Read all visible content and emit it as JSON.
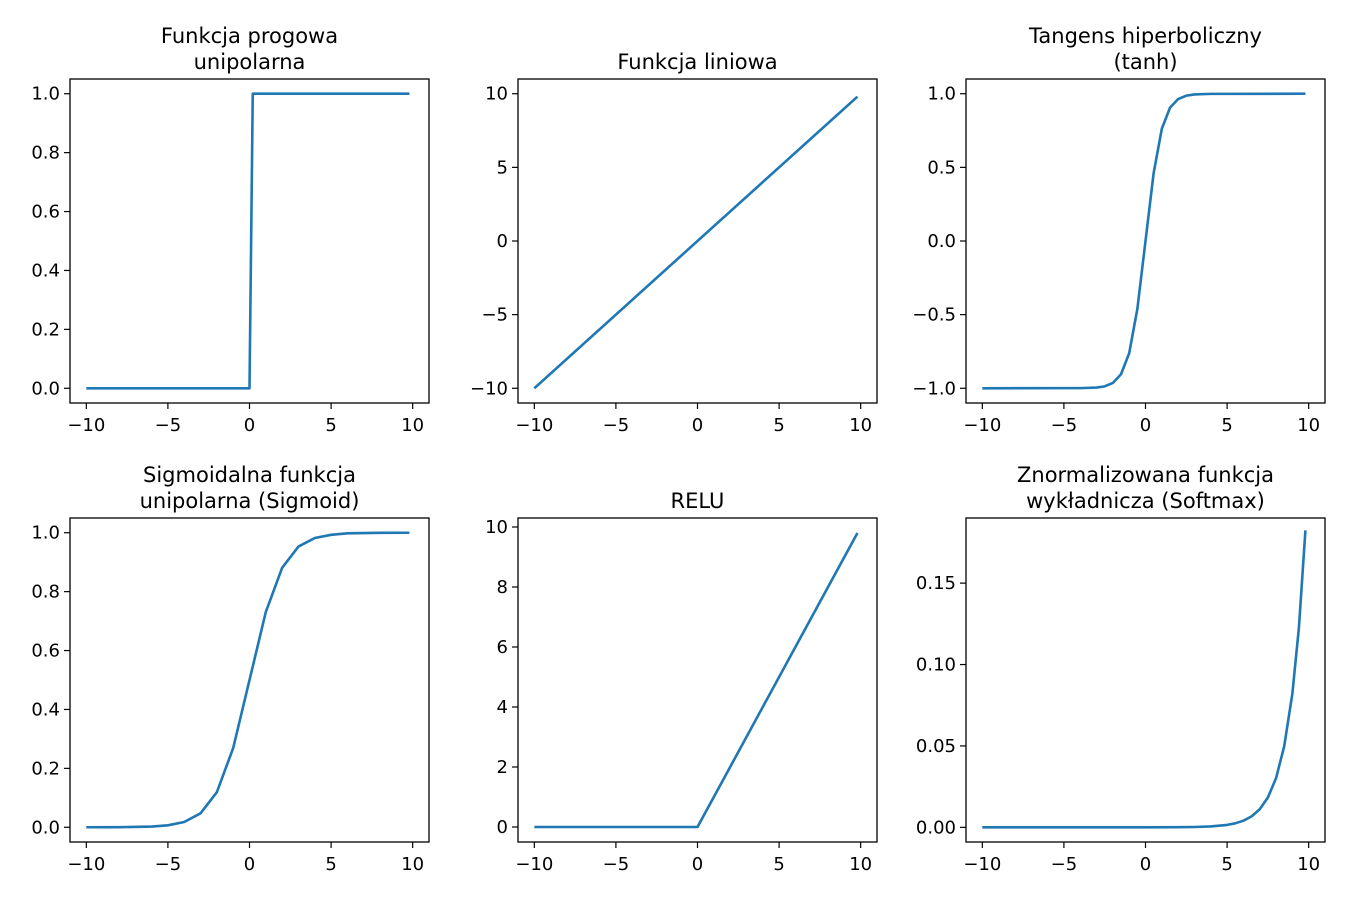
{
  "colors": {
    "line": "#1f77b4",
    "axes": "#000000",
    "background": "#ffffff"
  },
  "chart_data": [
    {
      "type": "line",
      "title": [
        "Funkcja progowa",
        "unipolarna"
      ],
      "xlim": [
        -11,
        11
      ],
      "ylim": [
        -0.05,
        1.05
      ],
      "xticks": [
        -10,
        -5,
        0,
        5,
        10
      ],
      "xtick_labels": [
        "−10",
        "−5",
        "0",
        "5",
        "10"
      ],
      "yticks": [
        0,
        0.2,
        0.4,
        0.6,
        0.8,
        1.0
      ],
      "ytick_labels": [
        "0.0",
        "0.2",
        "0.4",
        "0.6",
        "0.8",
        "1.0"
      ],
      "grid": false,
      "series": [
        {
          "x": [
            -10,
            0,
            0.2,
            9.8
          ],
          "y": [
            0,
            0,
            1,
            1
          ]
        }
      ]
    },
    {
      "type": "line",
      "title": [
        "Funkcja liniowa"
      ],
      "xlim": [
        -11,
        11
      ],
      "ylim": [
        -11,
        11
      ],
      "xticks": [
        -10,
        -5,
        0,
        5,
        10
      ],
      "xtick_labels": [
        "−10",
        "−5",
        "0",
        "5",
        "10"
      ],
      "yticks": [
        -10,
        -5,
        0,
        5,
        10
      ],
      "ytick_labels": [
        "−10",
        "−5",
        "0",
        "5",
        "10"
      ],
      "grid": false,
      "series": [
        {
          "x": [
            -10,
            9.8
          ],
          "y": [
            -10,
            9.8
          ]
        }
      ]
    },
    {
      "type": "line",
      "title": [
        "Tangens hiperboliczny",
        "(tanh)"
      ],
      "xlim": [
        -11,
        11
      ],
      "ylim": [
        -1.1,
        1.1
      ],
      "xticks": [
        -10,
        -5,
        0,
        5,
        10
      ],
      "xtick_labels": [
        "−10",
        "−5",
        "0",
        "5",
        "10"
      ],
      "yticks": [
        -1.0,
        -0.5,
        0.0,
        0.5,
        1.0
      ],
      "ytick_labels": [
        "−1.0",
        "−0.5",
        "0.0",
        "0.5",
        "1.0"
      ],
      "grid": false,
      "series": [
        {
          "x": [
            -10,
            -4,
            -3,
            -2.5,
            -2,
            -1.5,
            -1,
            -0.5,
            0,
            0.5,
            1,
            1.5,
            2,
            2.5,
            3,
            4,
            9.8
          ],
          "y": [
            -1,
            -0.999,
            -0.995,
            -0.987,
            -0.964,
            -0.905,
            -0.762,
            -0.462,
            0,
            0.462,
            0.762,
            0.905,
            0.964,
            0.987,
            0.995,
            0.999,
            1
          ]
        }
      ]
    },
    {
      "type": "line",
      "title": [
        "Sigmoidalna funkcja",
        "unipolarna (Sigmoid)"
      ],
      "xlim": [
        -11,
        11
      ],
      "ylim": [
        -0.05,
        1.05
      ],
      "xticks": [
        -10,
        -5,
        0,
        5,
        10
      ],
      "xtick_labels": [
        "−10",
        "−5",
        "0",
        "5",
        "10"
      ],
      "yticks": [
        0,
        0.2,
        0.4,
        0.6,
        0.8,
        1.0
      ],
      "ytick_labels": [
        "0.0",
        "0.2",
        "0.4",
        "0.6",
        "0.8",
        "1.0"
      ],
      "grid": false,
      "series": [
        {
          "x": [
            -10,
            -8,
            -6,
            -5,
            -4,
            -3,
            -2,
            -1,
            0,
            1,
            2,
            3,
            4,
            5,
            6,
            8,
            9.8
          ],
          "y": [
            4.54e-05,
            0.000335,
            0.00247,
            0.00669,
            0.018,
            0.0474,
            0.119,
            0.269,
            0.5,
            0.731,
            0.881,
            0.953,
            0.982,
            0.993,
            0.998,
            0.9997,
            0.99994
          ]
        }
      ]
    },
    {
      "type": "line",
      "title": [
        "RELU"
      ],
      "xlim": [
        -11,
        11
      ],
      "ylim": [
        -0.5,
        10.3
      ],
      "xticks": [
        -10,
        -5,
        0,
        5,
        10
      ],
      "xtick_labels": [
        "−10",
        "−5",
        "0",
        "5",
        "10"
      ],
      "yticks": [
        0,
        2,
        4,
        6,
        8,
        10
      ],
      "ytick_labels": [
        "0",
        "2",
        "4",
        "6",
        "8",
        "10"
      ],
      "grid": false,
      "series": [
        {
          "x": [
            -10,
            0,
            9.8
          ],
          "y": [
            0,
            0,
            9.8
          ]
        }
      ]
    },
    {
      "type": "line",
      "title": [
        "Znormalizowana funkcja",
        "wykładnicza (Softmax)"
      ],
      "xlim": [
        -11,
        11
      ],
      "ylim": [
        -0.009,
        0.19
      ],
      "xticks": [
        -10,
        -5,
        0,
        5,
        10
      ],
      "xtick_labels": [
        "−10",
        "−5",
        "0",
        "5",
        "10"
      ],
      "yticks": [
        0,
        0.05,
        0.1,
        0.15
      ],
      "ytick_labels": [
        "0.00",
        "0.05",
        "0.10",
        "0.15"
      ],
      "grid": false,
      "series": [
        {
          "x": [
            -10,
            0,
            2,
            3,
            4,
            5,
            5.5,
            6,
            6.5,
            7,
            7.5,
            8,
            8.5,
            9,
            9.4,
            9.8
          ],
          "y": [
            0,
            1.01e-05,
            7.49e-05,
            0.000204,
            0.000553,
            0.0015,
            0.00248,
            0.00409,
            0.00674,
            0.0111,
            0.0183,
            0.0302,
            0.0498,
            0.0821,
            0.1225,
            0.1824
          ]
        }
      ]
    }
  ]
}
